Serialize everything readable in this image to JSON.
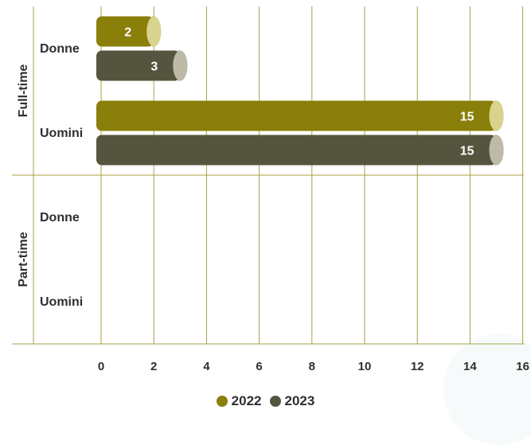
{
  "chart_data": {
    "type": "bar",
    "orientation": "horizontal",
    "groups": [
      {
        "label": "Full-time",
        "categories": [
          "Donne",
          "Uomini"
        ]
      },
      {
        "label": "Part-time",
        "categories": [
          "Donne",
          "Uomini"
        ]
      }
    ],
    "series": [
      {
        "name": "2022",
        "color": "#8a7f0a",
        "values": [
          2,
          15,
          null,
          null
        ]
      },
      {
        "name": "2023",
        "color": "#55553f",
        "values": [
          3,
          15,
          null,
          null
        ]
      }
    ],
    "data_labels": true,
    "x_ticks": [
      0,
      2,
      4,
      6,
      8,
      10,
      12,
      14,
      16
    ],
    "xlim": [
      0,
      16
    ],
    "grid": "vertical",
    "legend_position": "bottom"
  }
}
